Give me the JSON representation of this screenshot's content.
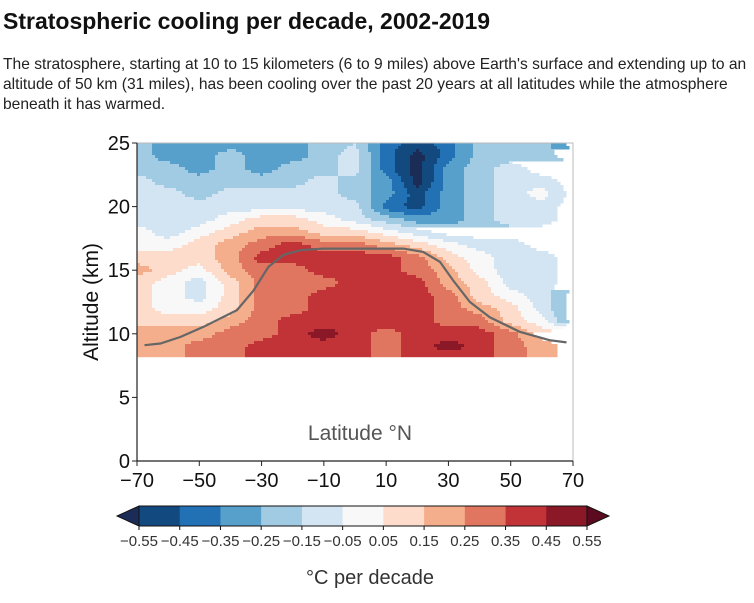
{
  "title": "Stratospheric cooling per decade, 2002-2019",
  "subtitle": "The stratosphere, starting at 10 to 15 kilometers (6 to 9 miles) above Earth's surface and extending up to an altitude of 50 km (31 miles), has been cooling over the past 20 years at all latitudes while the atmosphere beneath it has warmed.",
  "chart_data": {
    "type": "heatmap",
    "title": "Stratospheric cooling per decade, 2002-2019",
    "xlabel": "Latitude °N",
    "ylabel": "Altitude (km)",
    "xlim": [
      -70,
      70
    ],
    "ylim": [
      0,
      25
    ],
    "xticks": [
      "−70",
      "−50",
      "−30",
      "−10",
      "10",
      "30",
      "50",
      "70"
    ],
    "xtick_values": [
      -70,
      -50,
      -30,
      -10,
      10,
      30,
      50,
      70
    ],
    "yticks": [
      "0",
      "5",
      "10",
      "15",
      "20",
      "25"
    ],
    "ytick_values": [
      0,
      5,
      10,
      15,
      20,
      25
    ],
    "latitudes": [
      -70,
      -60,
      -50,
      -40,
      -30,
      -20,
      -10,
      0,
      10,
      20,
      30,
      40,
      50,
      60,
      70
    ],
    "altitudes": [
      25,
      24,
      23,
      22,
      21,
      20,
      19,
      18,
      17,
      16,
      15,
      14,
      13,
      12,
      11,
      10,
      9,
      8.2
    ],
    "values": [
      [
        -0.2,
        -0.3,
        -0.3,
        -0.3,
        -0.3,
        -0.3,
        -0.2,
        -0.15,
        -0.4,
        -0.5,
        -0.4,
        -0.2,
        -0.2,
        -0.2,
        -0.4
      ],
      [
        -0.2,
        -0.3,
        -0.3,
        -0.2,
        -0.3,
        -0.3,
        -0.2,
        -0.1,
        -0.4,
        -0.6,
        -0.4,
        -0.2,
        -0.2,
        -0.2,
        -0.3
      ],
      [
        -0.2,
        -0.2,
        -0.3,
        -0.2,
        -0.3,
        -0.2,
        -0.2,
        -0.1,
        -0.4,
        -0.6,
        -0.3,
        -0.2,
        -0.1,
        -0.2,
        -0.2
      ],
      [
        -0.1,
        -0.2,
        -0.2,
        -0.2,
        -0.2,
        -0.2,
        -0.1,
        -0.2,
        -0.3,
        -0.6,
        -0.3,
        -0.2,
        -0.1,
        -0.1,
        -0.2
      ],
      [
        -0.1,
        -0.1,
        -0.2,
        -0.1,
        -0.1,
        -0.1,
        -0.1,
        -0.2,
        -0.3,
        -0.5,
        -0.3,
        -0.2,
        -0.1,
        0.0,
        -0.2
      ],
      [
        -0.1,
        -0.1,
        -0.1,
        -0.1,
        -0.1,
        -0.1,
        -0.1,
        -0.1,
        -0.4,
        -0.5,
        -0.3,
        -0.2,
        -0.1,
        -0.1,
        -0.2
      ],
      [
        -0.1,
        -0.1,
        -0.1,
        0.0,
        0.1,
        0.1,
        0.0,
        -0.1,
        -0.2,
        -0.3,
        -0.3,
        -0.2,
        -0.1,
        -0.1,
        -0.2
      ],
      [
        0.0,
        -0.1,
        0.0,
        0.1,
        0.2,
        0.2,
        0.1,
        0.1,
        0.0,
        -0.1,
        -0.2,
        -0.2,
        -0.2,
        -0.2,
        -0.2
      ],
      [
        0.0,
        0.0,
        0.1,
        0.2,
        0.3,
        0.4,
        0.3,
        0.3,
        0.2,
        0.1,
        0.0,
        -0.1,
        -0.1,
        -0.2,
        -0.2
      ],
      [
        0.1,
        0.1,
        0.1,
        0.2,
        0.4,
        0.4,
        0.4,
        0.4,
        0.4,
        0.3,
        0.1,
        0.0,
        -0.1,
        -0.1,
        -0.2
      ],
      [
        0.2,
        0.1,
        0.0,
        0.2,
        0.3,
        0.3,
        0.4,
        0.4,
        0.4,
        0.3,
        0.2,
        0.0,
        -0.1,
        -0.1,
        -0.2
      ],
      [
        0.1,
        0.0,
        -0.1,
        0.1,
        0.3,
        0.3,
        0.3,
        0.4,
        0.4,
        0.4,
        0.2,
        0.1,
        -0.1,
        -0.1,
        -0.2
      ],
      [
        0.1,
        0.0,
        -0.1,
        0.1,
        0.3,
        0.3,
        0.4,
        0.4,
        0.4,
        0.4,
        0.3,
        0.1,
        0.0,
        -0.1,
        -0.3
      ],
      [
        0.1,
        0.0,
        0.0,
        0.1,
        0.3,
        0.3,
        0.4,
        0.4,
        0.4,
        0.4,
        0.3,
        0.2,
        0.1,
        -0.1,
        -0.3
      ],
      [
        0.1,
        0.1,
        0.1,
        0.2,
        0.3,
        0.4,
        0.4,
        0.4,
        0.4,
        0.4,
        0.3,
        0.3,
        0.1,
        0.0,
        -0.3
      ],
      [
        0.2,
        0.2,
        0.2,
        0.3,
        0.3,
        0.4,
        0.5,
        0.4,
        0.3,
        0.4,
        0.4,
        0.4,
        0.3,
        0.1,
        0.1
      ],
      [
        0.2,
        0.2,
        0.3,
        0.3,
        0.4,
        0.4,
        0.4,
        0.4,
        0.3,
        0.4,
        0.5,
        0.4,
        0.3,
        0.2,
        0.1
      ],
      [
        0.2,
        0.2,
        0.3,
        0.3,
        0.4,
        0.4,
        0.4,
        0.4,
        0.3,
        0.4,
        0.4,
        0.4,
        0.3,
        0.2,
        0.1
      ]
    ],
    "line": {
      "lat": [
        -67.6,
        -62.5,
        -56,
        -48.6,
        -37.9,
        -32.6,
        -27.8,
        -23,
        -17.6,
        -10.2,
        15.5,
        21.9,
        27.3,
        31.5,
        36.9,
        43.3,
        52.9,
        62.5,
        67.9
      ],
      "alt": [
        9.1,
        9.24,
        9.76,
        10.55,
        11.86,
        13.4,
        15.26,
        16.2,
        16.57,
        16.7,
        16.7,
        16.44,
        15.65,
        14.2,
        12.5,
        11.3,
        10.16,
        9.5,
        9.32
      ],
      "color": "#666666"
    },
    "colorbar": {
      "label": "°C per decade",
      "boundaries": [
        -0.55,
        -0.45,
        -0.35,
        -0.25,
        -0.15,
        -0.05,
        0.05,
        0.15,
        0.25,
        0.35,
        0.45,
        0.55
      ],
      "tick_labels": [
        "−0.55",
        "−0.45",
        "−0.35",
        "−0.25",
        "−0.15",
        "−0.05",
        "0.05",
        "0.15",
        "0.25",
        "0.35",
        "0.45",
        "0.55"
      ],
      "colors": [
        "#124a80",
        "#2271b5",
        "#58a0cc",
        "#a0cbe2",
        "#d3e5f3",
        "#f8f8f8",
        "#fddccb",
        "#f5ae8b",
        "#e07560",
        "#c23338",
        "#8b1827"
      ],
      "under_color": "#1b2d57",
      "over_color": "#5c0a1f",
      "extend": "both"
    }
  }
}
